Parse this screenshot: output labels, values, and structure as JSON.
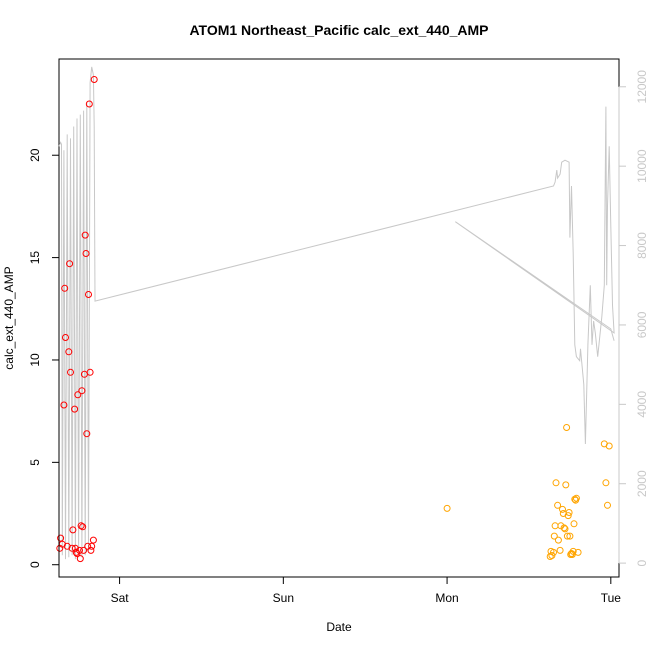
{
  "chart_data": {
    "type": "scatter",
    "title": "ATOM1 Northeast_Pacific calc_ext_440_AMP",
    "xlabel": "Date",
    "ylabel": "calc_ext_440_AMP",
    "xlim": [
      -0.37,
      3.05
    ],
    "ylim": [
      -0.6,
      24.7
    ],
    "y2lim": [
      -350,
      12700
    ],
    "x_ticks": [
      {
        "value": 0,
        "label": "Sat"
      },
      {
        "value": 1,
        "label": "Sun"
      },
      {
        "value": 2,
        "label": "Mon"
      },
      {
        "value": 3,
        "label": "Tue"
      }
    ],
    "y_ticks": [
      0,
      5,
      10,
      15,
      20
    ],
    "y2_ticks": [
      0,
      2000,
      4000,
      6000,
      8000,
      10000,
      12000
    ],
    "colors": {
      "series1": "#ff0000",
      "series2": "#ffa500",
      "background_line": "#c8c8c8"
    },
    "series": [
      {
        "color": "#ff0000",
        "points": [
          [
            -0.365,
            0.8
          ],
          [
            -0.36,
            1.3
          ],
          [
            -0.35,
            1.0
          ],
          [
            -0.34,
            7.8
          ],
          [
            -0.335,
            13.5
          ],
          [
            -0.33,
            11.1
          ],
          [
            -0.32,
            0.9
          ],
          [
            -0.31,
            10.4
          ],
          [
            -0.305,
            14.7
          ],
          [
            -0.3,
            9.4
          ],
          [
            -0.29,
            0.8
          ],
          [
            -0.285,
            1.7
          ],
          [
            -0.275,
            7.6
          ],
          [
            -0.27,
            0.8
          ],
          [
            -0.265,
            0.6
          ],
          [
            -0.26,
            0.55
          ],
          [
            -0.255,
            8.3
          ],
          [
            -0.245,
            0.7
          ],
          [
            -0.24,
            0.3
          ],
          [
            -0.235,
            1.9
          ],
          [
            -0.23,
            8.5
          ],
          [
            -0.225,
            1.85
          ],
          [
            -0.22,
            0.7
          ],
          [
            -0.215,
            9.3
          ],
          [
            -0.21,
            16.1
          ],
          [
            -0.205,
            15.2
          ],
          [
            -0.2,
            6.4
          ],
          [
            -0.195,
            0.9
          ],
          [
            -0.19,
            13.2
          ],
          [
            -0.185,
            22.5
          ],
          [
            -0.18,
            9.4
          ],
          [
            -0.175,
            0.7
          ],
          [
            -0.17,
            0.9
          ],
          [
            -0.16,
            1.2
          ],
          [
            -0.155,
            23.7
          ]
        ]
      },
      {
        "color": "#ffa500",
        "points": [
          [
            2.0,
            2.75
          ],
          [
            2.63,
            0.4
          ],
          [
            2.635,
            0.65
          ],
          [
            2.64,
            0.45
          ],
          [
            2.65,
            0.6
          ],
          [
            2.655,
            1.4
          ],
          [
            2.66,
            1.9
          ],
          [
            2.665,
            4.0
          ],
          [
            2.675,
            2.9
          ],
          [
            2.68,
            1.2
          ],
          [
            2.69,
            0.7
          ],
          [
            2.695,
            1.9
          ],
          [
            2.705,
            2.7
          ],
          [
            2.71,
            2.5
          ],
          [
            2.715,
            1.8
          ],
          [
            2.72,
            1.75
          ],
          [
            2.725,
            3.9
          ],
          [
            2.73,
            6.7
          ],
          [
            2.735,
            1.4
          ],
          [
            2.74,
            2.4
          ],
          [
            2.745,
            2.55
          ],
          [
            2.75,
            1.4
          ],
          [
            2.755,
            0.5
          ],
          [
            2.76,
            0.55
          ],
          [
            2.765,
            0.5
          ],
          [
            2.77,
            0.65
          ],
          [
            2.775,
            2.0
          ],
          [
            2.78,
            3.2
          ],
          [
            2.785,
            3.15
          ],
          [
            2.79,
            3.25
          ],
          [
            2.8,
            0.6
          ],
          [
            2.96,
            5.9
          ],
          [
            2.97,
            4.0
          ],
          [
            2.98,
            2.9
          ],
          [
            2.99,
            5.8
          ]
        ]
      },
      {
        "color": "#c8c8c8",
        "axis": "right",
        "line": [
          [
            -0.37,
            10500
          ],
          [
            -0.36,
            10600
          ],
          [
            -0.355,
            10550
          ],
          [
            -0.35,
            200
          ],
          [
            -0.34,
            10400
          ],
          [
            -0.33,
            100
          ],
          [
            -0.32,
            10800
          ],
          [
            -0.31,
            150
          ],
          [
            -0.3,
            10700
          ],
          [
            -0.29,
            200
          ],
          [
            -0.28,
            11000
          ],
          [
            -0.27,
            100
          ],
          [
            -0.26,
            11200
          ],
          [
            -0.25,
            200
          ],
          [
            -0.24,
            11300
          ],
          [
            -0.23,
            150
          ],
          [
            -0.22,
            11400
          ],
          [
            -0.21,
            200
          ],
          [
            -0.2,
            11600
          ],
          [
            -0.19,
            300
          ],
          [
            -0.18,
            12100
          ],
          [
            -0.17,
            12500
          ],
          [
            -0.16,
            12300
          ],
          [
            -0.155,
            11000
          ],
          [
            -0.15,
            6600
          ],
          [
            2.65,
            9500
          ],
          [
            2.66,
            9600
          ],
          [
            2.67,
            9900
          ],
          [
            2.675,
            9700
          ],
          [
            2.69,
            9800
          ],
          [
            2.7,
            10100
          ],
          [
            2.72,
            10150
          ],
          [
            2.745,
            10100
          ],
          [
            2.75,
            8200
          ],
          [
            2.76,
            9500
          ],
          [
            2.77,
            7800
          ],
          [
            2.78,
            5500
          ],
          [
            2.79,
            5200
          ],
          [
            2.81,
            5100
          ],
          [
            2.815,
            5400
          ],
          [
            2.835,
            4500
          ],
          [
            2.845,
            3000
          ],
          [
            2.86,
            5500
          ],
          [
            2.875,
            7000
          ],
          [
            2.885,
            5500
          ],
          [
            2.895,
            6100
          ],
          [
            2.905,
            5800
          ],
          [
            2.92,
            5200
          ],
          [
            2.945,
            6200
          ],
          [
            2.96,
            7000
          ],
          [
            2.97,
            11500
          ],
          [
            2.975,
            7000
          ],
          [
            2.98,
            9000
          ],
          [
            2.99,
            10500
          ],
          [
            3.0,
            8500
          ],
          [
            3.01,
            6500
          ],
          [
            3.02,
            5800
          ],
          [
            2.05,
            8600
          ],
          [
            3.0,
            5900
          ],
          [
            3.02,
            5600
          ]
        ]
      }
    ]
  }
}
